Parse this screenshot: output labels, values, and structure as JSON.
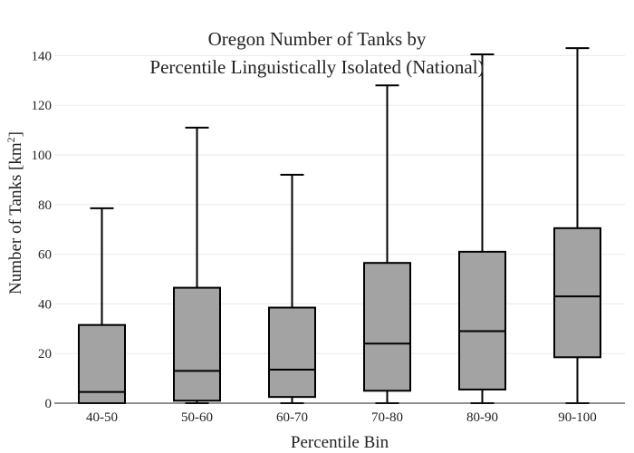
{
  "chart_data": {
    "type": "box",
    "title_lines": [
      "Oregon Number of Tanks by",
      "Percentile Linguistically Isolated (National)"
    ],
    "xlabel": "Percentile Bin",
    "ylabel_main": "Number of Tanks  [km",
    "ylabel_sup": "2",
    "ylabel_end": "]",
    "ylim": [
      0,
      150
    ],
    "yticks": [
      0,
      20,
      40,
      60,
      80,
      100,
      120,
      140
    ],
    "grid": true,
    "categories": [
      "40-50",
      "50-60",
      "60-70",
      "70-80",
      "80-90",
      "90-100"
    ],
    "boxes": [
      {
        "min": 0,
        "q1": 0,
        "median": 4.5,
        "q3": 31.5,
        "max": 78.5
      },
      {
        "min": 0,
        "q1": 1,
        "median": 13,
        "q3": 46.5,
        "max": 111
      },
      {
        "min": 0,
        "q1": 2.5,
        "median": 13.5,
        "q3": 38.5,
        "max": 92
      },
      {
        "min": 0,
        "q1": 5,
        "median": 24,
        "q3": 56.5,
        "max": 128
      },
      {
        "min": 0,
        "q1": 5.5,
        "median": 29,
        "q3": 61,
        "max": 140.5
      },
      {
        "min": 0,
        "q1": 18.5,
        "median": 43,
        "q3": 70.5,
        "max": 143
      }
    ],
    "box_color": "#a3a3a3"
  }
}
